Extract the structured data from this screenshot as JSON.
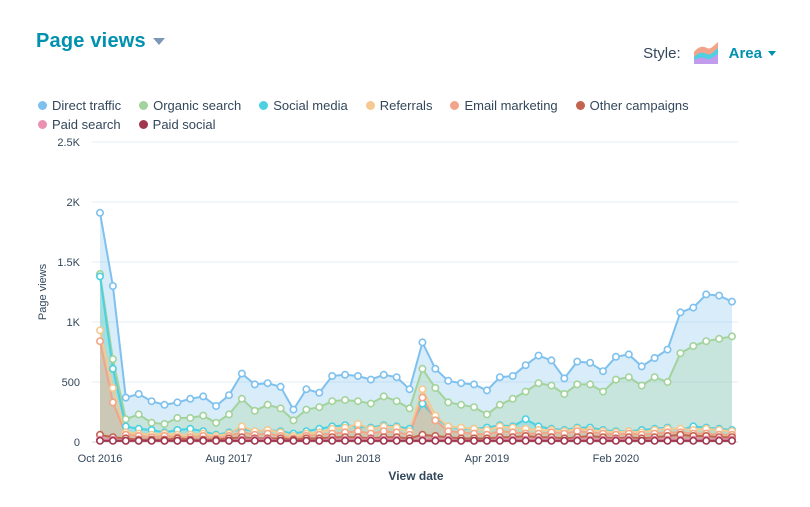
{
  "header": {
    "title": "Page views",
    "style_label": "Style:",
    "style_value": "Area",
    "style_icon": "area-chart-icon"
  },
  "colors": {
    "Direct traffic": "#7fc1ee",
    "Organic search": "#a3d39c",
    "Social media": "#4dd0e1",
    "Referrals": "#f5c992",
    "Email marketing": "#f2a48a",
    "Other campaigns": "#c26450",
    "Paid search": "#ea90b1",
    "Paid social": "#a0374e"
  },
  "chart_data": {
    "type": "area",
    "ylabel": "Page views",
    "xlabel": "View date",
    "ylim": [
      0,
      2500
    ],
    "yticks": [
      0,
      500,
      1000,
      1500,
      2000,
      2500
    ],
    "ytick_labels": [
      "0",
      "500",
      "1K",
      "1.5K",
      "2K",
      "2.5K"
    ],
    "xtick_labels": [
      {
        "index": 0,
        "label": "Oct 2016"
      },
      {
        "index": 10,
        "label": "Aug 2017"
      },
      {
        "index": 20,
        "label": "Jun 2018"
      },
      {
        "index": 30,
        "label": "Apr 2019"
      },
      {
        "index": 40,
        "label": "Feb 2020"
      }
    ],
    "grid": true,
    "legend_position": "top-left",
    "series": [
      {
        "name": "Direct traffic",
        "values": [
          1910,
          1300,
          370,
          400,
          340,
          310,
          330,
          360,
          380,
          300,
          390,
          570,
          480,
          490,
          460,
          270,
          440,
          410,
          550,
          560,
          550,
          520,
          560,
          540,
          440,
          830,
          610,
          510,
          490,
          480,
          430,
          540,
          550,
          640,
          720,
          680,
          530,
          670,
          660,
          590,
          710,
          730,
          630,
          700,
          770,
          1080,
          1120,
          1230,
          1220,
          1170
        ]
      },
      {
        "name": "Organic search",
        "values": [
          1400,
          690,
          190,
          230,
          160,
          150,
          200,
          200,
          220,
          160,
          230,
          360,
          260,
          310,
          280,
          180,
          270,
          290,
          340,
          350,
          340,
          320,
          380,
          340,
          280,
          610,
          450,
          330,
          310,
          290,
          230,
          310,
          360,
          420,
          490,
          470,
          400,
          480,
          480,
          420,
          520,
          540,
          470,
          540,
          500,
          740,
          800,
          840,
          860,
          880
        ]
      },
      {
        "name": "Social media",
        "values": [
          1380,
          610,
          130,
          110,
          100,
          80,
          100,
          110,
          90,
          60,
          80,
          110,
          90,
          100,
          90,
          70,
          90,
          110,
          130,
          140,
          130,
          120,
          140,
          130,
          110,
          320,
          200,
          130,
          110,
          110,
          120,
          140,
          130,
          190,
          130,
          110,
          100,
          120,
          120,
          100,
          90,
          90,
          100,
          110,
          120,
          100,
          130,
          120,
          110,
          100
        ]
      },
      {
        "name": "Referrals",
        "values": [
          930,
          450,
          80,
          70,
          60,
          70,
          60,
          60,
          70,
          50,
          70,
          130,
          90,
          100,
          80,
          50,
          70,
          80,
          110,
          120,
          150,
          110,
          130,
          120,
          90,
          440,
          220,
          130,
          120,
          110,
          100,
          130,
          120,
          110,
          100,
          100,
          90,
          110,
          100,
          90,
          80,
          90,
          80,
          100,
          110,
          110,
          100,
          110,
          100,
          90
        ]
      },
      {
        "name": "Email marketing",
        "values": [
          840,
          330,
          60,
          50,
          40,
          50,
          40,
          40,
          50,
          30,
          50,
          80,
          60,
          70,
          50,
          30,
          50,
          60,
          70,
          80,
          90,
          70,
          90,
          80,
          60,
          370,
          180,
          90,
          80,
          70,
          60,
          90,
          80,
          70,
          70,
          80,
          70,
          90,
          80,
          70,
          60,
          70,
          60,
          70,
          80,
          80,
          70,
          70,
          60,
          60
        ]
      },
      {
        "name": "Other campaigns",
        "values": [
          60,
          40,
          30,
          20,
          20,
          20,
          30,
          20,
          20,
          20,
          30,
          40,
          30,
          30,
          30,
          20,
          30,
          30,
          40,
          40,
          40,
          30,
          40,
          40,
          30,
          60,
          50,
          40,
          30,
          30,
          30,
          40,
          40,
          50,
          40,
          40,
          30,
          40,
          50,
          40,
          30,
          40,
          30,
          40,
          50,
          60,
          50,
          50,
          40,
          40
        ]
      },
      {
        "name": "Paid search",
        "values": [
          20,
          20,
          10,
          10,
          10,
          10,
          10,
          10,
          10,
          10,
          10,
          20,
          20,
          20,
          10,
          10,
          10,
          10,
          20,
          20,
          20,
          20,
          20,
          20,
          10,
          20,
          20,
          20,
          10,
          10,
          10,
          20,
          20,
          20,
          20,
          20,
          10,
          20,
          20,
          20,
          20,
          20,
          10,
          20,
          20,
          20,
          20,
          20,
          20,
          20
        ]
      },
      {
        "name": "Paid social",
        "values": [
          10,
          10,
          10,
          10,
          10,
          10,
          10,
          10,
          10,
          10,
          10,
          10,
          10,
          10,
          10,
          10,
          10,
          10,
          10,
          10,
          10,
          10,
          10,
          10,
          10,
          10,
          10,
          10,
          10,
          10,
          10,
          10,
          10,
          10,
          10,
          10,
          10,
          10,
          10,
          10,
          10,
          10,
          10,
          10,
          10,
          10,
          10,
          10,
          10,
          10
        ]
      }
    ]
  }
}
